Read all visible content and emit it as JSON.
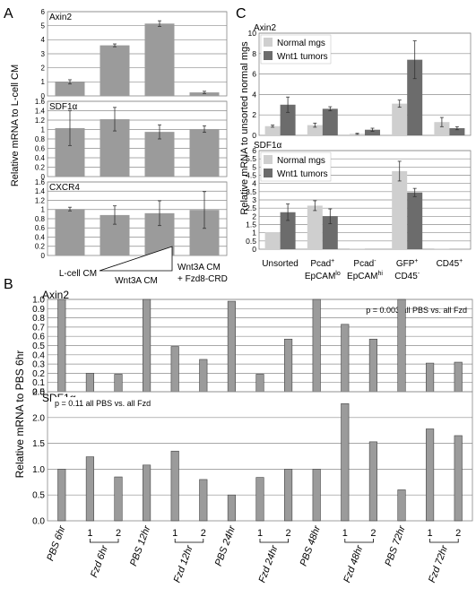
{
  "panels": {
    "a": "A",
    "b": "B",
    "c": "C"
  },
  "chart_data": [
    {
      "type": "bar",
      "panel": "A",
      "ylabel": "Relative mRNA to L-cell CM",
      "categories": [
        "L-cell CM",
        "Wnt3A CM (low)",
        "Wnt3A CM (high)",
        "Wnt3A CM + Fzd8-CRD"
      ],
      "xticks": {
        "lcell": "L-cell CM",
        "wnt3a": "Wnt3A CM",
        "wnt3a_fzd_1": "Wnt3A CM",
        "wnt3a_fzd_2": "+ Fzd8-CRD"
      },
      "color": "#9b9b9b",
      "subplots": [
        {
          "title": "Axin2",
          "ylim": [
            0,
            6
          ],
          "yticks": [
            "0",
            "1",
            "2",
            "3",
            "4",
            "5",
            "6"
          ],
          "values": [
            1.0,
            3.6,
            5.15,
            0.25
          ],
          "errors": [
            0.15,
            0.1,
            0.2,
            0.08
          ]
        },
        {
          "title": "SDF1α",
          "ylim": [
            0,
            1.6
          ],
          "yticks": [
            "0",
            "0.2",
            "0.4",
            "0.6",
            "0.8",
            "1",
            "1.2",
            "1.4",
            "1.6"
          ],
          "values": [
            1.03,
            1.22,
            0.95,
            1.01
          ],
          "errors": [
            0.37,
            0.25,
            0.15,
            0.07
          ]
        },
        {
          "title": "CXCR4",
          "ylim": [
            0,
            1.6
          ],
          "yticks": [
            "0",
            "0.2",
            "0.4",
            "0.6",
            "0.8",
            "1",
            "1.2",
            "1.4",
            "1.6"
          ],
          "values": [
            1.01,
            0.88,
            0.92,
            0.99
          ],
          "errors": [
            0.04,
            0.2,
            0.27,
            0.4
          ]
        }
      ]
    },
    {
      "type": "bar",
      "panel": "C",
      "ylabel": "Relative mRNA to unsorted normal mgs",
      "categories": [
        "Unsorted",
        "Pcad+ EpCAMlo",
        "Pcad- EpCAMhi",
        "GFP+ CD45-",
        "CD45+"
      ],
      "series_names": [
        "Normal mgs",
        "Wnt1 tumors"
      ],
      "colors": [
        "#cfcfcf",
        "#6c6c6c"
      ],
      "subplots": [
        {
          "title": "Axin2",
          "ylim": [
            0,
            10
          ],
          "yticks": [
            "0",
            "2",
            "4",
            "6",
            "8",
            "10"
          ],
          "series": [
            {
              "name": "Normal mgs",
              "values": [
                0.9,
                1.0,
                0.15,
                3.1,
                1.3
              ],
              "errors": [
                0.1,
                0.2,
                0.05,
                0.35,
                0.45
              ]
            },
            {
              "name": "Wnt1 tumors",
              "values": [
                3.0,
                2.6,
                0.55,
                7.4,
                0.7
              ],
              "errors": [
                0.75,
                0.2,
                0.15,
                1.85,
                0.15
              ]
            }
          ]
        },
        {
          "title": "SDF1α",
          "ylim": [
            0,
            6
          ],
          "yticks": [
            "0",
            "0.5",
            "1",
            "1.5",
            "2",
            "2.5",
            "3",
            "3.5",
            "4",
            "4.5",
            "5",
            "5.5",
            "6"
          ],
          "series": [
            {
              "name": "Normal mgs",
              "values": [
                1.0,
                2.65,
                0.02,
                4.75,
                0.02
              ],
              "errors": [
                0,
                0.3,
                0,
                0.6,
                0
              ]
            },
            {
              "name": "Wnt1 tumors",
              "values": [
                2.25,
                2.0,
                0.0,
                3.45,
                0.0
              ],
              "errors": [
                0.5,
                0.45,
                0,
                0.25,
                0
              ]
            }
          ]
        }
      ]
    },
    {
      "type": "bar",
      "panel": "B",
      "ylabel": "Relative mRNA to PBS 6hr",
      "categories": [
        "PBS 6hr",
        "Fzd 6hr 1",
        "Fzd 6hr 2",
        "PBS 12hr",
        "Fzd 12hr 1",
        "Fzd 12hr 2",
        "PBS 24hr",
        "Fzd 24hr 1",
        "Fzd 24hr 2",
        "PBS 48hr",
        "Fzd 48hr 1",
        "Fzd 48hr 2",
        "PBS 72hr",
        "Fzd 72hr 1",
        "Fzd 72hr 2"
      ],
      "color": "#9b9b9b",
      "xticks": {
        "pbs6": "PBS 6hr",
        "fzd6": "Fzd 6hr",
        "pbs12": "PBS 12hr",
        "fzd12": "Fzd 12hr",
        "pbs24": "PBS 24hr",
        "fzd24": "Fzd 24hr",
        "pbs48": "PBS 48hr",
        "fzd48": "Fzd 48hr",
        "pbs72": "PBS 72hr",
        "fzd72": "Fzd 72hr",
        "rep1": "1",
        "rep2": "2"
      },
      "subplots": [
        {
          "title": "Axin2",
          "annotation": "p = 0.003 all PBS vs. all Fzd",
          "ylim": [
            0,
            1.0
          ],
          "yticks": [
            "0.0",
            "0.1",
            "0.2",
            "0.3",
            "0.4",
            "0.5",
            "0.6",
            "0.7",
            "0.8",
            "0.9",
            "1.0"
          ],
          "values": [
            1.0,
            0.2,
            0.19,
            1.0,
            0.49,
            0.35,
            0.98,
            0.19,
            0.57,
            1.0,
            0.73,
            0.57,
            1.0,
            0.31,
            0.32
          ]
        },
        {
          "title": "SDF1α",
          "annotation": "p = 0.11 all PBS vs. all Fzd",
          "ylim": [
            0,
            2.5
          ],
          "yticks": [
            "0.0",
            "0.5",
            "1.0",
            "1.5",
            "2.0",
            "2.5"
          ],
          "values": [
            1.0,
            1.24,
            0.85,
            1.08,
            1.35,
            0.8,
            0.5,
            0.84,
            1.0,
            1.0,
            2.27,
            1.53,
            0.6,
            1.78,
            1.65
          ]
        }
      ]
    }
  ]
}
